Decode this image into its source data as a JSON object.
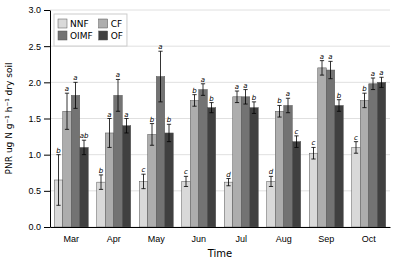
{
  "chart_data": {
    "type": "bar",
    "xlabel": "Time",
    "ylabel": "PNR ug N g⁻¹ h⁻¹ dry soil",
    "categories": [
      "Mar",
      "Apr",
      "May",
      "Jun",
      "Jul",
      "Aug",
      "Sep",
      "Oct"
    ],
    "series": [
      {
        "name": "NNF",
        "color": "#d9d9d9",
        "values": [
          0.65,
          0.62,
          0.63,
          0.63,
          0.62,
          0.63,
          1.02,
          1.1
        ],
        "errors": [
          0.35,
          0.1,
          0.1,
          0.07,
          0.05,
          0.07,
          0.08,
          0.08
        ],
        "significance": [
          "b",
          "b",
          "c",
          "c",
          "d",
          "d",
          "c",
          "c"
        ]
      },
      {
        "name": "CF",
        "color": "#adadad",
        "values": [
          1.6,
          1.3,
          1.28,
          1.75,
          1.8,
          1.6,
          2.2,
          1.75
        ],
        "errors": [
          0.25,
          0.2,
          0.15,
          0.08,
          0.08,
          0.08,
          0.1,
          0.1
        ],
        "significance": [
          "a",
          "a",
          "b",
          "b",
          "a",
          "b",
          "a",
          "b"
        ]
      },
      {
        "name": "OIMF",
        "color": "#737373",
        "values": [
          1.82,
          1.82,
          2.08,
          1.9,
          1.8,
          1.68,
          2.17,
          1.98
        ],
        "errors": [
          0.18,
          0.22,
          0.35,
          0.08,
          0.1,
          0.1,
          0.12,
          0.08
        ],
        "significance": [
          "a",
          "a",
          "a",
          "a",
          "a",
          "a",
          "a",
          "a"
        ]
      },
      {
        "name": "OF",
        "color": "#404040",
        "values": [
          1.1,
          1.4,
          1.3,
          1.65,
          1.65,
          1.18,
          1.68,
          2.0
        ],
        "errors": [
          0.1,
          0.1,
          0.12,
          0.07,
          0.08,
          0.08,
          0.08,
          0.07
        ],
        "significance": [
          "ab",
          "a",
          "b",
          "b",
          "b",
          "c",
          "b",
          "a"
        ]
      }
    ],
    "ylim": [
      0.0,
      3.0
    ],
    "yticks": [
      {
        "value": 0.0,
        "label": "0.0"
      },
      0.5,
      {
        "value": 1.0,
        "label": "1.0"
      },
      1.5,
      {
        "value": 2.0,
        "label": "2.0"
      },
      2.5,
      {
        "value": 3.0,
        "label": "3.0"
      }
    ],
    "grid": true,
    "legend": "upper left"
  }
}
